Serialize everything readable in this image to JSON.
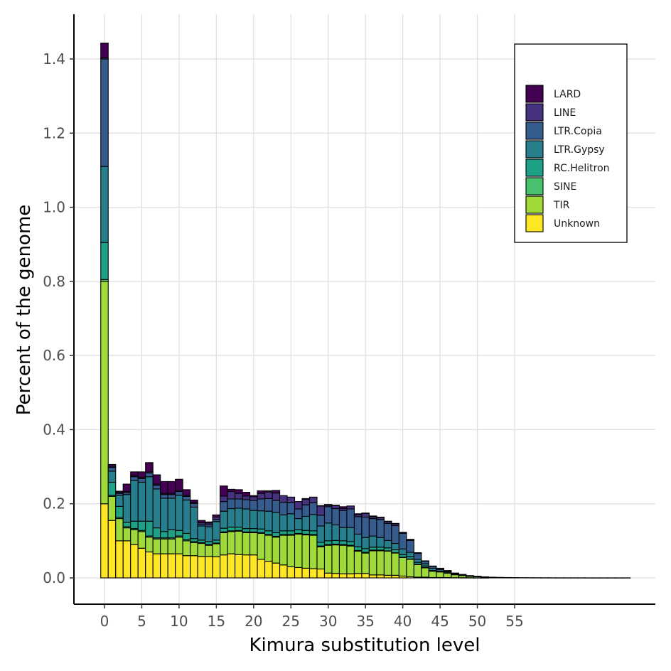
{
  "chart_data": {
    "type": "bar",
    "stacked": true,
    "xlabel": "Kimura substitution level",
    "ylabel": "Percent of the genome",
    "x_ticks": [
      0,
      5,
      10,
      15,
      20,
      25,
      30,
      35,
      40,
      45,
      50,
      55
    ],
    "y_ticks": [
      0.0,
      0.2,
      0.4,
      0.6,
      0.8,
      1.0,
      1.2,
      1.4
    ],
    "y_tick_labels": [
      "0.0",
      "0.2",
      "0.4",
      "0.6",
      "0.8",
      "1.0",
      "1.2",
      "1.4"
    ],
    "xlim": [
      -4,
      74
    ],
    "ylim": [
      -0.07,
      1.52
    ],
    "grid": true,
    "legend_position": "top-right",
    "x": [
      0,
      1,
      2,
      3,
      4,
      5,
      6,
      7,
      8,
      9,
      10,
      11,
      12,
      13,
      14,
      15,
      16,
      17,
      18,
      19,
      20,
      21,
      22,
      23,
      24,
      25,
      26,
      27,
      28,
      29,
      30,
      31,
      32,
      33,
      34,
      35,
      36,
      37,
      38,
      39,
      40,
      41,
      42,
      43,
      44,
      45,
      46,
      47,
      48,
      49,
      50,
      51,
      52,
      53,
      54,
      55,
      56,
      57,
      58,
      59,
      60,
      61,
      62,
      63,
      64,
      65,
      66,
      67,
      68,
      69,
      70
    ],
    "series": [
      {
        "name": "Unknown",
        "color": "#FDE725",
        "values": [
          0.2,
          0.155,
          0.1,
          0.1,
          0.09,
          0.08,
          0.07,
          0.065,
          0.065,
          0.065,
          0.065,
          0.06,
          0.06,
          0.058,
          0.058,
          0.057,
          0.062,
          0.065,
          0.063,
          0.062,
          0.062,
          0.05,
          0.045,
          0.04,
          0.035,
          0.03,
          0.028,
          0.026,
          0.025,
          0.024,
          0.013,
          0.012,
          0.011,
          0.011,
          0.012,
          0.012,
          0.008,
          0.008,
          0.007,
          0.007,
          0.005,
          0.003,
          0.002,
          0.002,
          0.001,
          0.001,
          0.0008,
          0.0005,
          0.0004,
          0.0003,
          0.0002,
          0.0001,
          0,
          0,
          0,
          0,
          0,
          0,
          0,
          0,
          0,
          0,
          0,
          0,
          0,
          0,
          0,
          0,
          0,
          0,
          0
        ]
      },
      {
        "name": "TIR",
        "color": "#9FDA3A",
        "values": [
          0.6,
          0.065,
          0.06,
          0.035,
          0.04,
          0.045,
          0.04,
          0.04,
          0.04,
          0.04,
          0.045,
          0.04,
          0.035,
          0.035,
          0.03,
          0.035,
          0.06,
          0.06,
          0.063,
          0.06,
          0.06,
          0.07,
          0.07,
          0.07,
          0.08,
          0.085,
          0.09,
          0.09,
          0.09,
          0.06,
          0.075,
          0.077,
          0.077,
          0.075,
          0.06,
          0.055,
          0.065,
          0.065,
          0.065,
          0.06,
          0.05,
          0.047,
          0.034,
          0.025,
          0.017,
          0.015,
          0.012,
          0.008,
          0.006,
          0.004,
          0.003,
          0.002,
          0.0015,
          0.001,
          0.001,
          0.0008,
          0.0006,
          0.0005,
          0.0004,
          0.0003,
          0.0003,
          0.0002,
          0.0002,
          0.0002,
          0.0002,
          0.0001,
          0.0001,
          0.0001,
          0.0001,
          0.0001,
          0.0001
        ]
      },
      {
        "name": "SINE",
        "color": "#4AC16D",
        "values": [
          0.005,
          0.003,
          0.003,
          0.003,
          0.003,
          0.003,
          0.003,
          0.003,
          0.003,
          0.003,
          0.003,
          0.003,
          0.003,
          0.002,
          0.002,
          0.002,
          0.002,
          0.002,
          0.002,
          0.002,
          0.002,
          0.002,
          0.002,
          0.002,
          0.002,
          0.002,
          0.002,
          0.002,
          0.002,
          0.002,
          0.002,
          0.002,
          0.002,
          0.002,
          0.002,
          0.002,
          0.002,
          0.002,
          0.001,
          0.001,
          0.001,
          0.001,
          0.001,
          0.001,
          0,
          0,
          0,
          0,
          0,
          0,
          0,
          0,
          0,
          0,
          0,
          0,
          0,
          0,
          0,
          0,
          0,
          0,
          0,
          0,
          0,
          0,
          0,
          0,
          0,
          0,
          0
        ]
      },
      {
        "name": "RC.Helitron",
        "color": "#1FA187",
        "values": [
          0.1,
          0.035,
          0.03,
          0.012,
          0.02,
          0.025,
          0.04,
          0.027,
          0.017,
          0.022,
          0.015,
          0.017,
          0.008,
          0.007,
          0.008,
          0.008,
          0.01,
          0.01,
          0.009,
          0.009,
          0.009,
          0.01,
          0.01,
          0.01,
          0.01,
          0.01,
          0.01,
          0.01,
          0.01,
          0.01,
          0.01,
          0.01,
          0.01,
          0.01,
          0.01,
          0.01,
          0.008,
          0.008,
          0.008,
          0.008,
          0.007,
          0.006,
          0.005,
          0.004,
          0.002,
          0.002,
          0.001,
          0.001,
          0.0005,
          0.0004,
          0.0003,
          0.0002,
          0,
          0,
          0,
          0,
          0,
          0,
          0,
          0,
          0,
          0,
          0,
          0,
          0,
          0,
          0,
          0,
          0,
          0,
          0
        ]
      },
      {
        "name": "LTR.Gypsy",
        "color": "#277F8E",
        "values": [
          0.205,
          0.03,
          0.03,
          0.075,
          0.11,
          0.105,
          0.12,
          0.105,
          0.09,
          0.085,
          0.095,
          0.09,
          0.085,
          0.038,
          0.04,
          0.05,
          0.046,
          0.05,
          0.051,
          0.053,
          0.049,
          0.049,
          0.053,
          0.055,
          0.043,
          0.046,
          0.03,
          0.038,
          0.044,
          0.044,
          0.048,
          0.042,
          0.036,
          0.038,
          0.034,
          0.03,
          0.03,
          0.026,
          0.02,
          0.017,
          0.015,
          0.012,
          0.008,
          0.006,
          0.006,
          0.004,
          0.003,
          0.002,
          0.001,
          0.001,
          0.0005,
          0.0003,
          0.0002,
          0.0001,
          0,
          0,
          0,
          0,
          0,
          0,
          0,
          0,
          0,
          0,
          0,
          0,
          0,
          0,
          0,
          0,
          0
        ]
      },
      {
        "name": "LTR.Copia",
        "color": "#365C8D",
        "values": [
          0.29,
          0.01,
          0.005,
          0.005,
          0.01,
          0.01,
          0.01,
          0.01,
          0.01,
          0.01,
          0.01,
          0.01,
          0.01,
          0.005,
          0.005,
          0.006,
          0.026,
          0.026,
          0.025,
          0.025,
          0.027,
          0.032,
          0.034,
          0.032,
          0.034,
          0.03,
          0.026,
          0.031,
          0.032,
          0.029,
          0.044,
          0.044,
          0.046,
          0.05,
          0.047,
          0.055,
          0.047,
          0.049,
          0.046,
          0.048,
          0.042,
          0.032,
          0.016,
          0.007,
          0.005,
          0.003,
          0.002,
          0.001,
          0.001,
          0.0005,
          0.0005,
          0.0003,
          0.0002,
          0.0001,
          0,
          0,
          0,
          0,
          0,
          0,
          0,
          0,
          0,
          0,
          0,
          0,
          0,
          0,
          0,
          0,
          0
        ]
      },
      {
        "name": "LINE",
        "color": "#46327E",
        "values": [
          0.003,
          0.003,
          0.003,
          0.003,
          0.003,
          0.003,
          0.003,
          0.003,
          0.003,
          0.003,
          0.003,
          0.003,
          0.003,
          0.004,
          0.005,
          0.006,
          0.015,
          0.02,
          0.015,
          0.01,
          0.01,
          0.015,
          0.018,
          0.02,
          0.018,
          0.015,
          0.02,
          0.015,
          0.015,
          0.025,
          0.004,
          0.008,
          0.005,
          0.008,
          0.005,
          0.01,
          0.005,
          0.005,
          0.005,
          0.005,
          0.002,
          0.002,
          0.002,
          0.001,
          0.001,
          0.001,
          0.001,
          0.0005,
          0.0005,
          0,
          0,
          0,
          0,
          0,
          0,
          0,
          0,
          0,
          0,
          0,
          0,
          0,
          0,
          0,
          0,
          0,
          0,
          0,
          0,
          0,
          0
        ]
      },
      {
        "name": "LARD",
        "color": "#440154",
        "values": [
          0.04,
          0.005,
          0.003,
          0.02,
          0.01,
          0.015,
          0.025,
          0.025,
          0.032,
          0.032,
          0.03,
          0.015,
          0.006,
          0.006,
          0.003,
          0.006,
          0.027,
          0.006,
          0.01,
          0.01,
          0.003,
          0.007,
          0.003,
          0.007,
          0.0,
          0.0,
          0.0,
          0.002,
          0.0,
          0.001,
          0.002,
          0.001,
          0.005,
          0.0,
          0.003,
          0.001,
          0.002,
          0.001,
          0.001,
          0.001,
          0.001,
          0.001,
          0.0,
          0.0,
          0,
          0,
          0,
          0,
          0,
          0,
          0,
          0,
          0,
          0,
          0,
          0,
          0,
          0,
          0,
          0,
          0,
          0,
          0,
          0,
          0,
          0,
          0,
          0,
          0,
          0,
          0
        ]
      }
    ]
  }
}
